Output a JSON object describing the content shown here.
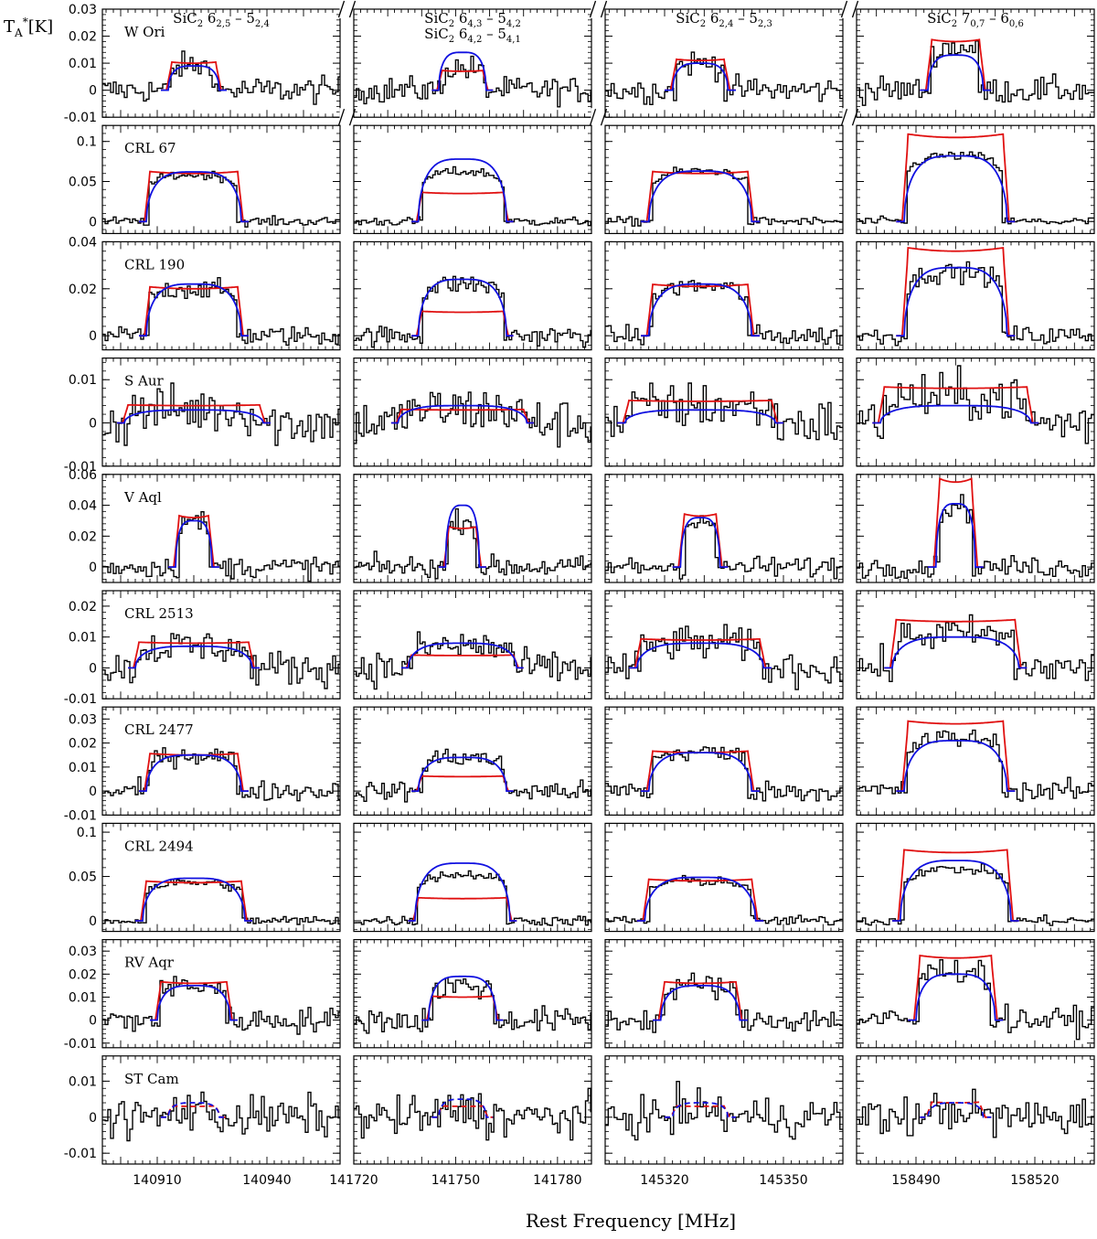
{
  "chart_data": {
    "type": "line",
    "xlabel": "Rest Frequency [MHz]",
    "ylabel": "TA*[K]",
    "colors": {
      "observed": "#000000",
      "model_red": "#e01010",
      "model_blue": "#1010e0"
    },
    "columns": [
      {
        "transitions": [
          "SiC2 6(2,5) - 5(2,4)"
        ],
        "xlim": [
          140895,
          140960
        ],
        "center": 140920,
        "ticks": [
          140910,
          140940
        ],
        "tick_labels": [
          "140910",
          "140940"
        ]
      },
      {
        "transitions": [
          "SiC2 6(4,3) - 5(4,2)",
          "SiC2 6(4,2) - 5(4,1)"
        ],
        "xlim": [
          141720,
          141790
        ],
        "center": 141752,
        "ticks": [
          141720,
          141750,
          141780
        ],
        "tick_labels": [
          "141720",
          "141750",
          "141780"
        ]
      },
      {
        "transitions": [
          "SiC2 6(2,4) - 5(2,3)"
        ],
        "xlim": [
          145305,
          145365
        ],
        "center": 145329,
        "ticks": [
          145320,
          145350
        ],
        "tick_labels": [
          "145320",
          "145350"
        ]
      },
      {
        "transitions": [
          "SiC2 7(0,7) - 6(0,6)"
        ],
        "xlim": [
          158475,
          158535
        ],
        "center": 158500,
        "ticks": [
          158490,
          158520
        ],
        "tick_labels": [
          "158490",
          "158520"
        ]
      }
    ],
    "rows": [
      {
        "source": "W Ori",
        "ylim": [
          -0.01,
          0.03
        ],
        "yticks": [
          -0.01,
          0,
          0.01,
          0.02,
          0.03
        ],
        "ytick_labels": [
          "-0.01",
          "0",
          "0.01",
          "0.02",
          "0.03"
        ],
        "noise": 0.0035,
        "broken_axis": true,
        "models": [
          {
            "half_width": 6,
            "red": 0.01,
            "blue": 0.009,
            "obs": 0.009
          },
          {
            "half_width": 6,
            "red": 0.007,
            "blue": 0.014,
            "obs": 0.008
          },
          {
            "half_width": 6,
            "red": 0.011,
            "blue": 0.01,
            "obs": 0.01
          },
          {
            "half_width": 6,
            "red": 0.018,
            "blue": 0.013,
            "obs": 0.016
          }
        ]
      },
      {
        "source": "CRL 67",
        "ylim": [
          -0.015,
          0.12
        ],
        "yticks": [
          0,
          0.05,
          0.1
        ],
        "ytick_labels": [
          "0",
          "0.05",
          "0.1"
        ],
        "noise": 0.004,
        "models": [
          {
            "half_width": 12,
            "red": 0.06,
            "blue": 0.062,
            "obs": 0.058
          },
          {
            "half_width": 12,
            "red": 0.035,
            "blue": 0.078,
            "obs": 0.062
          },
          {
            "half_width": 12,
            "red": 0.06,
            "blue": 0.063,
            "obs": 0.063
          },
          {
            "half_width": 12,
            "red": 0.105,
            "blue": 0.082,
            "obs": 0.082
          }
        ]
      },
      {
        "source": "CRL 190",
        "ylim": [
          -0.006,
          0.04
        ],
        "yticks": [
          0,
          0.02,
          0.04
        ],
        "ytick_labels": [
          "0",
          "0.02",
          "0.04"
        ],
        "noise": 0.003,
        "models": [
          {
            "half_width": 12,
            "red": 0.02,
            "blue": 0.022,
            "obs": 0.02
          },
          {
            "half_width": 12,
            "red": 0.01,
            "blue": 0.024,
            "obs": 0.022
          },
          {
            "half_width": 12,
            "red": 0.021,
            "blue": 0.022,
            "obs": 0.021
          },
          {
            "half_width": 12,
            "red": 0.036,
            "blue": 0.029,
            "obs": 0.027
          }
        ]
      },
      {
        "source": "S Aur",
        "ylim": [
          -0.01,
          0.015
        ],
        "yticks": [
          -0.01,
          0,
          0.01
        ],
        "ytick_labels": [
          "-0.01",
          "0",
          "0.01"
        ],
        "noise": 0.004,
        "models": [
          {
            "half_width": 18,
            "red": 0.004,
            "blue": 0.003,
            "obs": 0.003
          },
          {
            "half_width": 18,
            "red": 0.003,
            "blue": 0.004,
            "obs": 0.003
          },
          {
            "half_width": 18,
            "red": 0.005,
            "blue": 0.003,
            "obs": 0.004
          },
          {
            "half_width": 18,
            "red": 0.008,
            "blue": 0.004,
            "obs": 0.006
          }
        ]
      },
      {
        "source": "V Aql",
        "ylim": [
          -0.01,
          0.06
        ],
        "yticks": [
          0,
          0.02,
          0.04,
          0.06
        ],
        "ytick_labels": [
          "0",
          "0.02",
          "0.04",
          "0.06"
        ],
        "noise": 0.005,
        "models": [
          {
            "half_width": 4,
            "red": 0.032,
            "blue": 0.03,
            "obs": 0.03
          },
          {
            "half_width": 4,
            "red": 0.025,
            "blue": 0.04,
            "obs": 0.03
          },
          {
            "half_width": 4,
            "red": 0.033,
            "blue": 0.032,
            "obs": 0.03
          },
          {
            "half_width": 4,
            "red": 0.055,
            "blue": 0.041,
            "obs": 0.04
          }
        ]
      },
      {
        "source": "CRL 2513",
        "ylim": [
          -0.01,
          0.025
        ],
        "yticks": [
          -0.01,
          0,
          0.01,
          0.02
        ],
        "ytick_labels": [
          "-0.01",
          "0",
          "0.01",
          "0.02"
        ],
        "noise": 0.004,
        "models": [
          {
            "half_width": 15,
            "red": 0.008,
            "blue": 0.007,
            "obs": 0.007
          },
          {
            "half_width": 15,
            "red": 0.004,
            "blue": 0.008,
            "obs": 0.007
          },
          {
            "half_width": 15,
            "red": 0.009,
            "blue": 0.008,
            "obs": 0.008
          },
          {
            "half_width": 15,
            "red": 0.015,
            "blue": 0.01,
            "obs": 0.011
          }
        ]
      },
      {
        "source": "CRL 2477",
        "ylim": [
          -0.01,
          0.035
        ],
        "yticks": [
          -0.01,
          0,
          0.01,
          0.02,
          0.03
        ],
        "ytick_labels": [
          "-0.01",
          "0",
          "0.01",
          "0.02",
          "0.03"
        ],
        "noise": 0.003,
        "models": [
          {
            "half_width": 12,
            "red": 0.015,
            "blue": 0.015,
            "obs": 0.015
          },
          {
            "half_width": 12,
            "red": 0.006,
            "blue": 0.014,
            "obs": 0.014
          },
          {
            "half_width": 12,
            "red": 0.016,
            "blue": 0.016,
            "obs": 0.016
          },
          {
            "half_width": 12,
            "red": 0.028,
            "blue": 0.021,
            "obs": 0.022
          }
        ]
      },
      {
        "source": "CRL 2494",
        "ylim": [
          -0.012,
          0.11
        ],
        "yticks": [
          0,
          0.05,
          0.1
        ],
        "ytick_labels": [
          "0",
          "0.05",
          "0.1"
        ],
        "noise": 0.004,
        "models": [
          {
            "half_width": 13,
            "red": 0.043,
            "blue": 0.048,
            "obs": 0.043
          },
          {
            "half_width": 13,
            "red": 0.025,
            "blue": 0.065,
            "obs": 0.052
          },
          {
            "half_width": 13,
            "red": 0.045,
            "blue": 0.049,
            "obs": 0.045
          },
          {
            "half_width": 13,
            "red": 0.077,
            "blue": 0.068,
            "obs": 0.058
          }
        ]
      },
      {
        "source": "RV Aqr",
        "ylim": [
          -0.012,
          0.035
        ],
        "yticks": [
          -0.01,
          0,
          0.01,
          0.02,
          0.03
        ],
        "ytick_labels": [
          "-0.01",
          "0",
          "0.01",
          "0.02",
          "0.03"
        ],
        "noise": 0.004,
        "models": [
          {
            "half_width": 9,
            "red": 0.016,
            "blue": 0.015,
            "obs": 0.015
          },
          {
            "half_width": 9,
            "red": 0.01,
            "blue": 0.019,
            "obs": 0.015
          },
          {
            "half_width": 9,
            "red": 0.016,
            "blue": 0.015,
            "obs": 0.015
          },
          {
            "half_width": 9,
            "red": 0.027,
            "blue": 0.02,
            "obs": 0.022
          }
        ]
      },
      {
        "source": "ST Cam",
        "ylim": [
          -0.013,
          0.017
        ],
        "yticks": [
          -0.01,
          0,
          0.01
        ],
        "ytick_labels": [
          "-0.01",
          "0",
          "0.01"
        ],
        "noise": 0.004,
        "dashed_models": true,
        "models": [
          {
            "half_width": 6,
            "red": 0.003,
            "blue": 0.004,
            "obs": 0.002
          },
          {
            "half_width": 6,
            "red": 0.003,
            "blue": 0.005,
            "obs": 0.002
          },
          {
            "half_width": 6,
            "red": 0.003,
            "blue": 0.004,
            "obs": 0.002
          },
          {
            "half_width": 6,
            "red": 0.004,
            "blue": 0.004,
            "obs": 0.002
          }
        ]
      }
    ]
  }
}
